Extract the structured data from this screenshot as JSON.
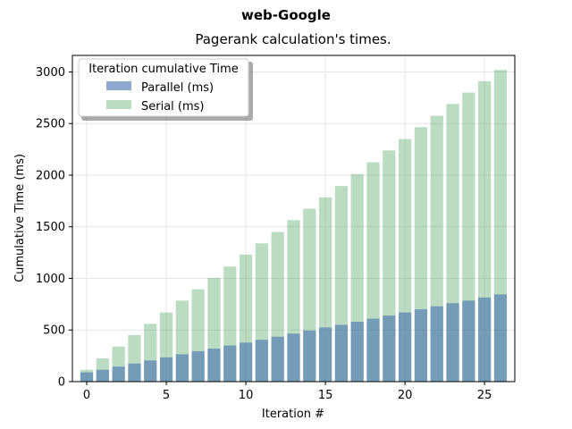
{
  "chart_data": {
    "type": "bar",
    "suptitle": "web-Google",
    "title": "Pagerank calculation's times.",
    "xlabel": "Iteration #",
    "ylabel": "Cumulative Time (ms)",
    "xlim": [
      -0.9,
      26.9
    ],
    "ylim": [
      0,
      3160
    ],
    "xticks": [
      0,
      5,
      10,
      15,
      20,
      25
    ],
    "yticks": [
      0,
      500,
      1000,
      1500,
      2000,
      2500,
      3000
    ],
    "grid": true,
    "legend": {
      "title": "Iteration cumulative Time",
      "placement": "top-left"
    },
    "x": [
      0,
      1,
      2,
      3,
      4,
      5,
      6,
      7,
      8,
      9,
      10,
      11,
      12,
      13,
      14,
      15,
      16,
      17,
      18,
      19,
      20,
      21,
      22,
      23,
      24,
      25,
      26
    ],
    "series": [
      {
        "name": "Parallel (ms)",
        "color": "#4c72b0",
        "values": [
          90,
          115,
          145,
          175,
          205,
          235,
          265,
          295,
          320,
          350,
          378,
          405,
          435,
          465,
          495,
          525,
          550,
          580,
          610,
          640,
          670,
          700,
          730,
          760,
          785,
          815,
          845
        ]
      },
      {
        "name": "Serial (ms)",
        "color": "#55a868",
        "values": [
          115,
          225,
          340,
          450,
          560,
          670,
          785,
          895,
          1005,
          1115,
          1230,
          1340,
          1450,
          1565,
          1675,
          1785,
          1895,
          2010,
          2125,
          2240,
          2350,
          2465,
          2575,
          2690,
          2800,
          2910,
          3020
        ]
      }
    ]
  }
}
